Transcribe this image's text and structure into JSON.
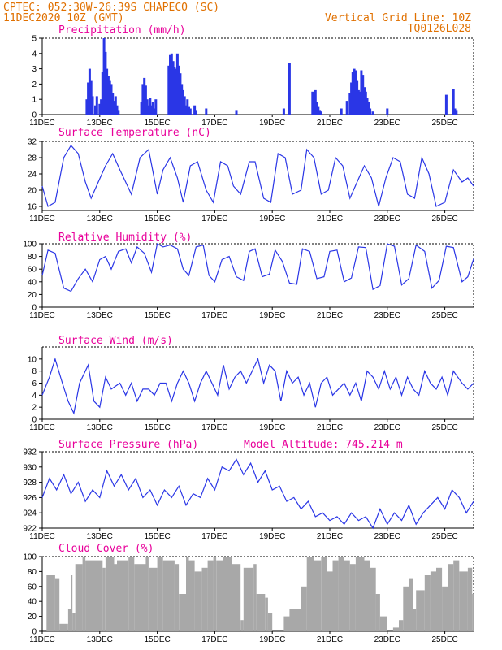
{
  "header": {
    "left_line1": "CPTEC:   052:30W-26:39S   CHAPECO (SC)",
    "left_line2": "11DEC2020 10Z (GMT)",
    "right_line1": "Vertical Grid Line: 10Z",
    "right_line2": "TQ0126L028"
  },
  "colors": {
    "header": "#e07000",
    "title": "#e8009a",
    "series": "#2a36e6",
    "cloud": "#a8a8a8"
  },
  "x_tick_labels": [
    "11DEC",
    "13DEC",
    "15DEC",
    "17DEC",
    "19DEC",
    "21DEC",
    "23DEC",
    "25DEC"
  ],
  "x_tick_days": [
    0,
    2,
    4,
    6,
    8,
    10,
    12,
    14
  ],
  "x_range_days": [
    0,
    15
  ],
  "chart_data": [
    {
      "type": "bar",
      "title": "Precipitation (mm/h)",
      "ylim": [
        0,
        5
      ],
      "yticks": [
        0,
        1,
        2,
        3,
        4,
        5
      ],
      "x_unit": "days since 11DEC2020 10Z",
      "x": [
        1.55,
        1.6,
        1.65,
        1.7,
        1.75,
        1.85,
        1.9,
        2.0,
        2.05,
        2.1,
        2.15,
        2.2,
        2.25,
        2.3,
        2.35,
        2.4,
        2.45,
        2.5,
        2.55,
        2.6,
        2.65,
        3.45,
        3.5,
        3.55,
        3.6,
        3.65,
        3.7,
        3.75,
        3.8,
        3.85,
        3.9,
        3.95,
        4.4,
        4.45,
        4.5,
        4.55,
        4.6,
        4.65,
        4.7,
        4.75,
        4.8,
        4.85,
        4.9,
        4.95,
        5.0,
        5.05,
        5.1,
        5.15,
        5.3,
        5.35,
        5.7,
        6.75,
        8.4,
        8.6,
        9.4,
        9.45,
        9.5,
        9.55,
        9.6,
        9.65,
        9.7,
        10.4,
        10.6,
        10.7,
        10.75,
        10.8,
        10.85,
        10.9,
        10.95,
        11.0,
        11.05,
        11.1,
        11.15,
        11.2,
        11.25,
        11.3,
        11.35,
        11.4,
        11.5,
        12.0,
        14.05,
        14.3,
        14.35,
        14.4
      ],
      "values": [
        1.0,
        2.1,
        3.0,
        2.2,
        1.2,
        0.6,
        1.2,
        0.7,
        1.0,
        2.8,
        5.0,
        4.1,
        3.0,
        2.5,
        2.2,
        2.0,
        1.4,
        0.9,
        1.2,
        0.6,
        0.3,
        0.8,
        2.0,
        2.4,
        1.9,
        1.0,
        0.6,
        1.1,
        0.6,
        0.8,
        0.4,
        1.0,
        3.2,
        3.9,
        4.0,
        3.5,
        3.1,
        3.0,
        4.0,
        3.2,
        2.7,
        2.0,
        1.6,
        1.2,
        0.6,
        1.0,
        0.5,
        0.4,
        0.6,
        0.3,
        0.4,
        0.3,
        0.4,
        3.4,
        1.5,
        1.1,
        1.6,
        0.8,
        0.5,
        0.3,
        0.2,
        0.4,
        0.9,
        1.4,
        2.1,
        2.8,
        3.0,
        2.9,
        2.2,
        1.6,
        1.5,
        2.9,
        2.6,
        1.8,
        1.5,
        1.1,
        0.8,
        0.4,
        0.2,
        0.4,
        1.3,
        1.7,
        0.4,
        0.3
      ]
    },
    {
      "type": "line",
      "title": "Surface Temperature (nC)",
      "ylim": [
        15,
        32
      ],
      "yticks": [
        16,
        20,
        24,
        28,
        32
      ],
      "x": [
        0.0,
        0.2,
        0.45,
        0.75,
        1.0,
        1.25,
        1.5,
        1.7,
        1.95,
        2.2,
        2.45,
        2.7,
        2.9,
        3.1,
        3.4,
        3.7,
        4.0,
        4.2,
        4.45,
        4.7,
        4.9,
        5.15,
        5.4,
        5.7,
        5.95,
        6.2,
        6.45,
        6.65,
        6.9,
        7.2,
        7.4,
        7.7,
        7.95,
        8.2,
        8.45,
        8.7,
        9.0,
        9.2,
        9.45,
        9.7,
        9.95,
        10.2,
        10.45,
        10.7,
        10.95,
        11.2,
        11.45,
        11.7,
        11.95,
        12.2,
        12.45,
        12.7,
        12.95,
        13.2,
        13.45,
        13.7,
        14.0,
        14.3,
        14.6,
        14.8,
        15.0
      ],
      "values": [
        21,
        16,
        17,
        28,
        31,
        29,
        22,
        18,
        22,
        26,
        29,
        25,
        22,
        19,
        28,
        30,
        19,
        25,
        28,
        23,
        17,
        26,
        27,
        20,
        17,
        27,
        26,
        21,
        19,
        27,
        27,
        18,
        17,
        29,
        28,
        19,
        20,
        30,
        28,
        19,
        20,
        28,
        26,
        18,
        22,
        26,
        23,
        16,
        23,
        28,
        27,
        19,
        18,
        28,
        24,
        16,
        17,
        25,
        22,
        23,
        21
      ]
    },
    {
      "type": "line",
      "title": "Relative Humidity (%)",
      "ylim": [
        0,
        100
      ],
      "yticks": [
        0,
        20,
        40,
        60,
        80,
        100
      ],
      "x": [
        0.0,
        0.2,
        0.45,
        0.75,
        1.0,
        1.25,
        1.5,
        1.75,
        2.0,
        2.2,
        2.4,
        2.65,
        2.9,
        3.1,
        3.3,
        3.55,
        3.8,
        4.0,
        4.2,
        4.45,
        4.7,
        4.9,
        5.1,
        5.35,
        5.6,
        5.8,
        6.0,
        6.25,
        6.5,
        6.75,
        7.0,
        7.2,
        7.4,
        7.65,
        7.9,
        8.1,
        8.35,
        8.6,
        8.85,
        9.05,
        9.3,
        9.55,
        9.8,
        10.0,
        10.25,
        10.5,
        10.75,
        11.0,
        11.25,
        11.5,
        11.75,
        12.0,
        12.25,
        12.5,
        12.75,
        13.0,
        13.3,
        13.55,
        13.8,
        14.05,
        14.3,
        14.6,
        14.8,
        15.0
      ],
      "values": [
        50,
        90,
        85,
        30,
        25,
        45,
        60,
        40,
        75,
        80,
        60,
        88,
        92,
        70,
        95,
        85,
        55,
        100,
        95,
        98,
        92,
        60,
        50,
        95,
        98,
        50,
        40,
        75,
        80,
        48,
        42,
        88,
        92,
        48,
        52,
        90,
        72,
        38,
        36,
        92,
        88,
        45,
        48,
        88,
        90,
        40,
        46,
        95,
        94,
        28,
        34,
        100,
        96,
        35,
        45,
        98,
        88,
        30,
        42,
        96,
        94,
        40,
        48,
        76
      ]
    },
    {
      "type": "line",
      "title": "Surface Wind (m/s)",
      "ylim": [
        0,
        12
      ],
      "yticks": [
        0,
        2,
        4,
        6,
        8,
        10
      ],
      "x": [
        0.0,
        0.25,
        0.45,
        0.7,
        0.9,
        1.1,
        1.3,
        1.6,
        1.8,
        2.0,
        2.2,
        2.4,
        2.7,
        2.9,
        3.1,
        3.3,
        3.5,
        3.7,
        3.9,
        4.1,
        4.3,
        4.5,
        4.7,
        4.9,
        5.1,
        5.3,
        5.5,
        5.7,
        5.9,
        6.1,
        6.3,
        6.5,
        6.7,
        6.9,
        7.1,
        7.3,
        7.5,
        7.7,
        7.9,
        8.1,
        8.3,
        8.5,
        8.7,
        8.9,
        9.1,
        9.3,
        9.5,
        9.7,
        9.9,
        10.1,
        10.3,
        10.5,
        10.7,
        10.9,
        11.1,
        11.3,
        11.5,
        11.7,
        11.9,
        12.1,
        12.3,
        12.5,
        12.7,
        12.9,
        13.1,
        13.3,
        13.5,
        13.7,
        13.9,
        14.1,
        14.3,
        14.6,
        14.8,
        15.0
      ],
      "values": [
        4,
        7,
        10,
        6,
        3,
        1,
        6,
        9,
        3,
        2,
        7,
        5,
        6,
        4,
        6,
        3,
        5,
        5,
        4,
        6,
        6,
        3,
        6,
        8,
        6,
        3,
        6,
        8,
        6,
        4,
        9,
        5,
        7,
        8,
        6,
        8,
        10,
        6,
        9,
        8,
        3,
        8,
        6,
        7,
        4,
        6,
        2,
        6,
        7,
        4,
        5,
        6,
        4,
        6,
        3,
        8,
        7,
        5,
        8,
        5,
        7,
        4,
        7,
        5,
        4,
        8,
        6,
        5,
        7,
        4,
        8,
        6,
        5,
        6
      ]
    },
    {
      "type": "line",
      "title": "Surface Pressure (hPa)",
      "annotation": "Model Altitude: 745.214 m",
      "ylim": [
        922,
        932
      ],
      "yticks": [
        922,
        924,
        926,
        928,
        930,
        932
      ],
      "x": [
        0.0,
        0.25,
        0.5,
        0.75,
        1.0,
        1.25,
        1.5,
        1.75,
        2.0,
        2.25,
        2.5,
        2.75,
        3.0,
        3.25,
        3.5,
        3.75,
        4.0,
        4.25,
        4.5,
        4.75,
        5.0,
        5.25,
        5.5,
        5.75,
        6.0,
        6.25,
        6.5,
        6.75,
        7.0,
        7.25,
        7.5,
        7.75,
        8.0,
        8.25,
        8.5,
        8.75,
        9.0,
        9.25,
        9.5,
        9.75,
        10.0,
        10.25,
        10.5,
        10.75,
        11.0,
        11.25,
        11.5,
        11.75,
        12.0,
        12.25,
        12.5,
        12.75,
        13.0,
        13.25,
        13.5,
        13.75,
        14.0,
        14.25,
        14.5,
        14.75,
        15.0
      ],
      "values": [
        926,
        928.5,
        927,
        929,
        926.5,
        928,
        925.5,
        927,
        926,
        929.5,
        927.5,
        929,
        927,
        928.5,
        926,
        927,
        925,
        927,
        926,
        927.5,
        925,
        926.5,
        926,
        928.5,
        927,
        930,
        929.5,
        931,
        929,
        930.5,
        928,
        929.5,
        927,
        927.5,
        925.5,
        926,
        924.5,
        925.5,
        923.5,
        924,
        923,
        923.5,
        922.5,
        924,
        923,
        923.5,
        922,
        924.5,
        922.5,
        924,
        923,
        925,
        922.5,
        924,
        925,
        926,
        924.5,
        927,
        926,
        924,
        925.5
      ]
    },
    {
      "type": "bar",
      "title": "Cloud Cover (%)",
      "ylim": [
        0,
        100
      ],
      "yticks": [
        0,
        20,
        40,
        60,
        80,
        100
      ],
      "x_unit": "days since 11DEC2020 10Z",
      "segments_x": [
        0.0,
        0.15,
        0.45,
        0.6,
        0.9,
        1.0,
        1.05,
        1.15,
        1.4,
        1.5,
        2.1,
        2.2,
        2.5,
        2.6,
        3.0,
        3.2,
        3.6,
        3.7,
        4.0,
        4.2,
        4.6,
        4.75,
        5.0,
        5.1,
        5.3,
        5.55,
        5.75,
        5.95,
        6.05,
        6.3,
        6.6,
        6.9,
        7.0,
        7.35,
        7.45,
        7.75,
        7.85,
        8.0,
        8.4,
        8.6,
        9.0,
        9.2,
        9.45,
        9.7,
        9.9,
        10.1,
        10.3,
        10.5,
        10.7,
        10.9,
        11.2,
        11.4,
        11.6,
        11.75,
        12.0,
        12.2,
        12.4,
        12.55,
        12.75,
        12.9,
        13.0,
        13.3,
        13.5,
        13.7,
        13.9,
        14.1,
        14.3,
        14.5,
        14.8,
        14.95
      ],
      "values": [
        0,
        75,
        70,
        10,
        30,
        75,
        25,
        90,
        100,
        95,
        85,
        100,
        90,
        95,
        100,
        90,
        100,
        85,
        100,
        95,
        90,
        50,
        100,
        95,
        80,
        85,
        95,
        100,
        95,
        100,
        90,
        15,
        85,
        90,
        50,
        45,
        25,
        0,
        20,
        30,
        60,
        100,
        95,
        100,
        80,
        95,
        100,
        95,
        90,
        100,
        95,
        85,
        50,
        20,
        0,
        5,
        15,
        60,
        70,
        30,
        55,
        75,
        80,
        85,
        60,
        90,
        95,
        80,
        85,
        50
      ]
    }
  ]
}
